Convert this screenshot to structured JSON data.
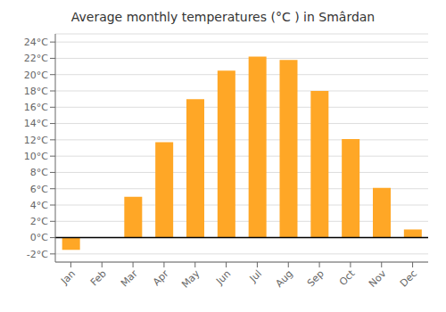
{
  "chart_data": {
    "type": "bar",
    "title": "Average monthly temperatures (°C ) in Smârdan",
    "categories": [
      "Jan",
      "Feb",
      "Mar",
      "Apr",
      "May",
      "Jun",
      "Jul",
      "Aug",
      "Sep",
      "Oct",
      "Nov",
      "Dec"
    ],
    "values": [
      -1.5,
      0,
      5.0,
      11.7,
      17.0,
      20.5,
      22.2,
      21.8,
      18.0,
      12.1,
      6.1,
      1.0
    ],
    "color": "#FFA726",
    "ylim": [
      -3,
      25
    ],
    "yticks": [
      {
        "value": -2,
        "label": "-2°C"
      },
      {
        "value": 0,
        "label": "0°C"
      },
      {
        "value": 2,
        "label": "2°C"
      },
      {
        "value": 4,
        "label": "4°C"
      },
      {
        "value": 6,
        "label": "6°C"
      },
      {
        "value": 8,
        "label": "8°C"
      },
      {
        "value": 10,
        "label": "10°C"
      },
      {
        "value": 12,
        "label": "12°C"
      },
      {
        "value": 14,
        "label": "14°C"
      },
      {
        "value": 16,
        "label": "16°C"
      },
      {
        "value": 18,
        "label": "18°C"
      },
      {
        "value": 20,
        "label": "20°C"
      },
      {
        "value": 22,
        "label": "22°C"
      },
      {
        "value": 24,
        "label": "24°C"
      }
    ],
    "grid": true
  }
}
